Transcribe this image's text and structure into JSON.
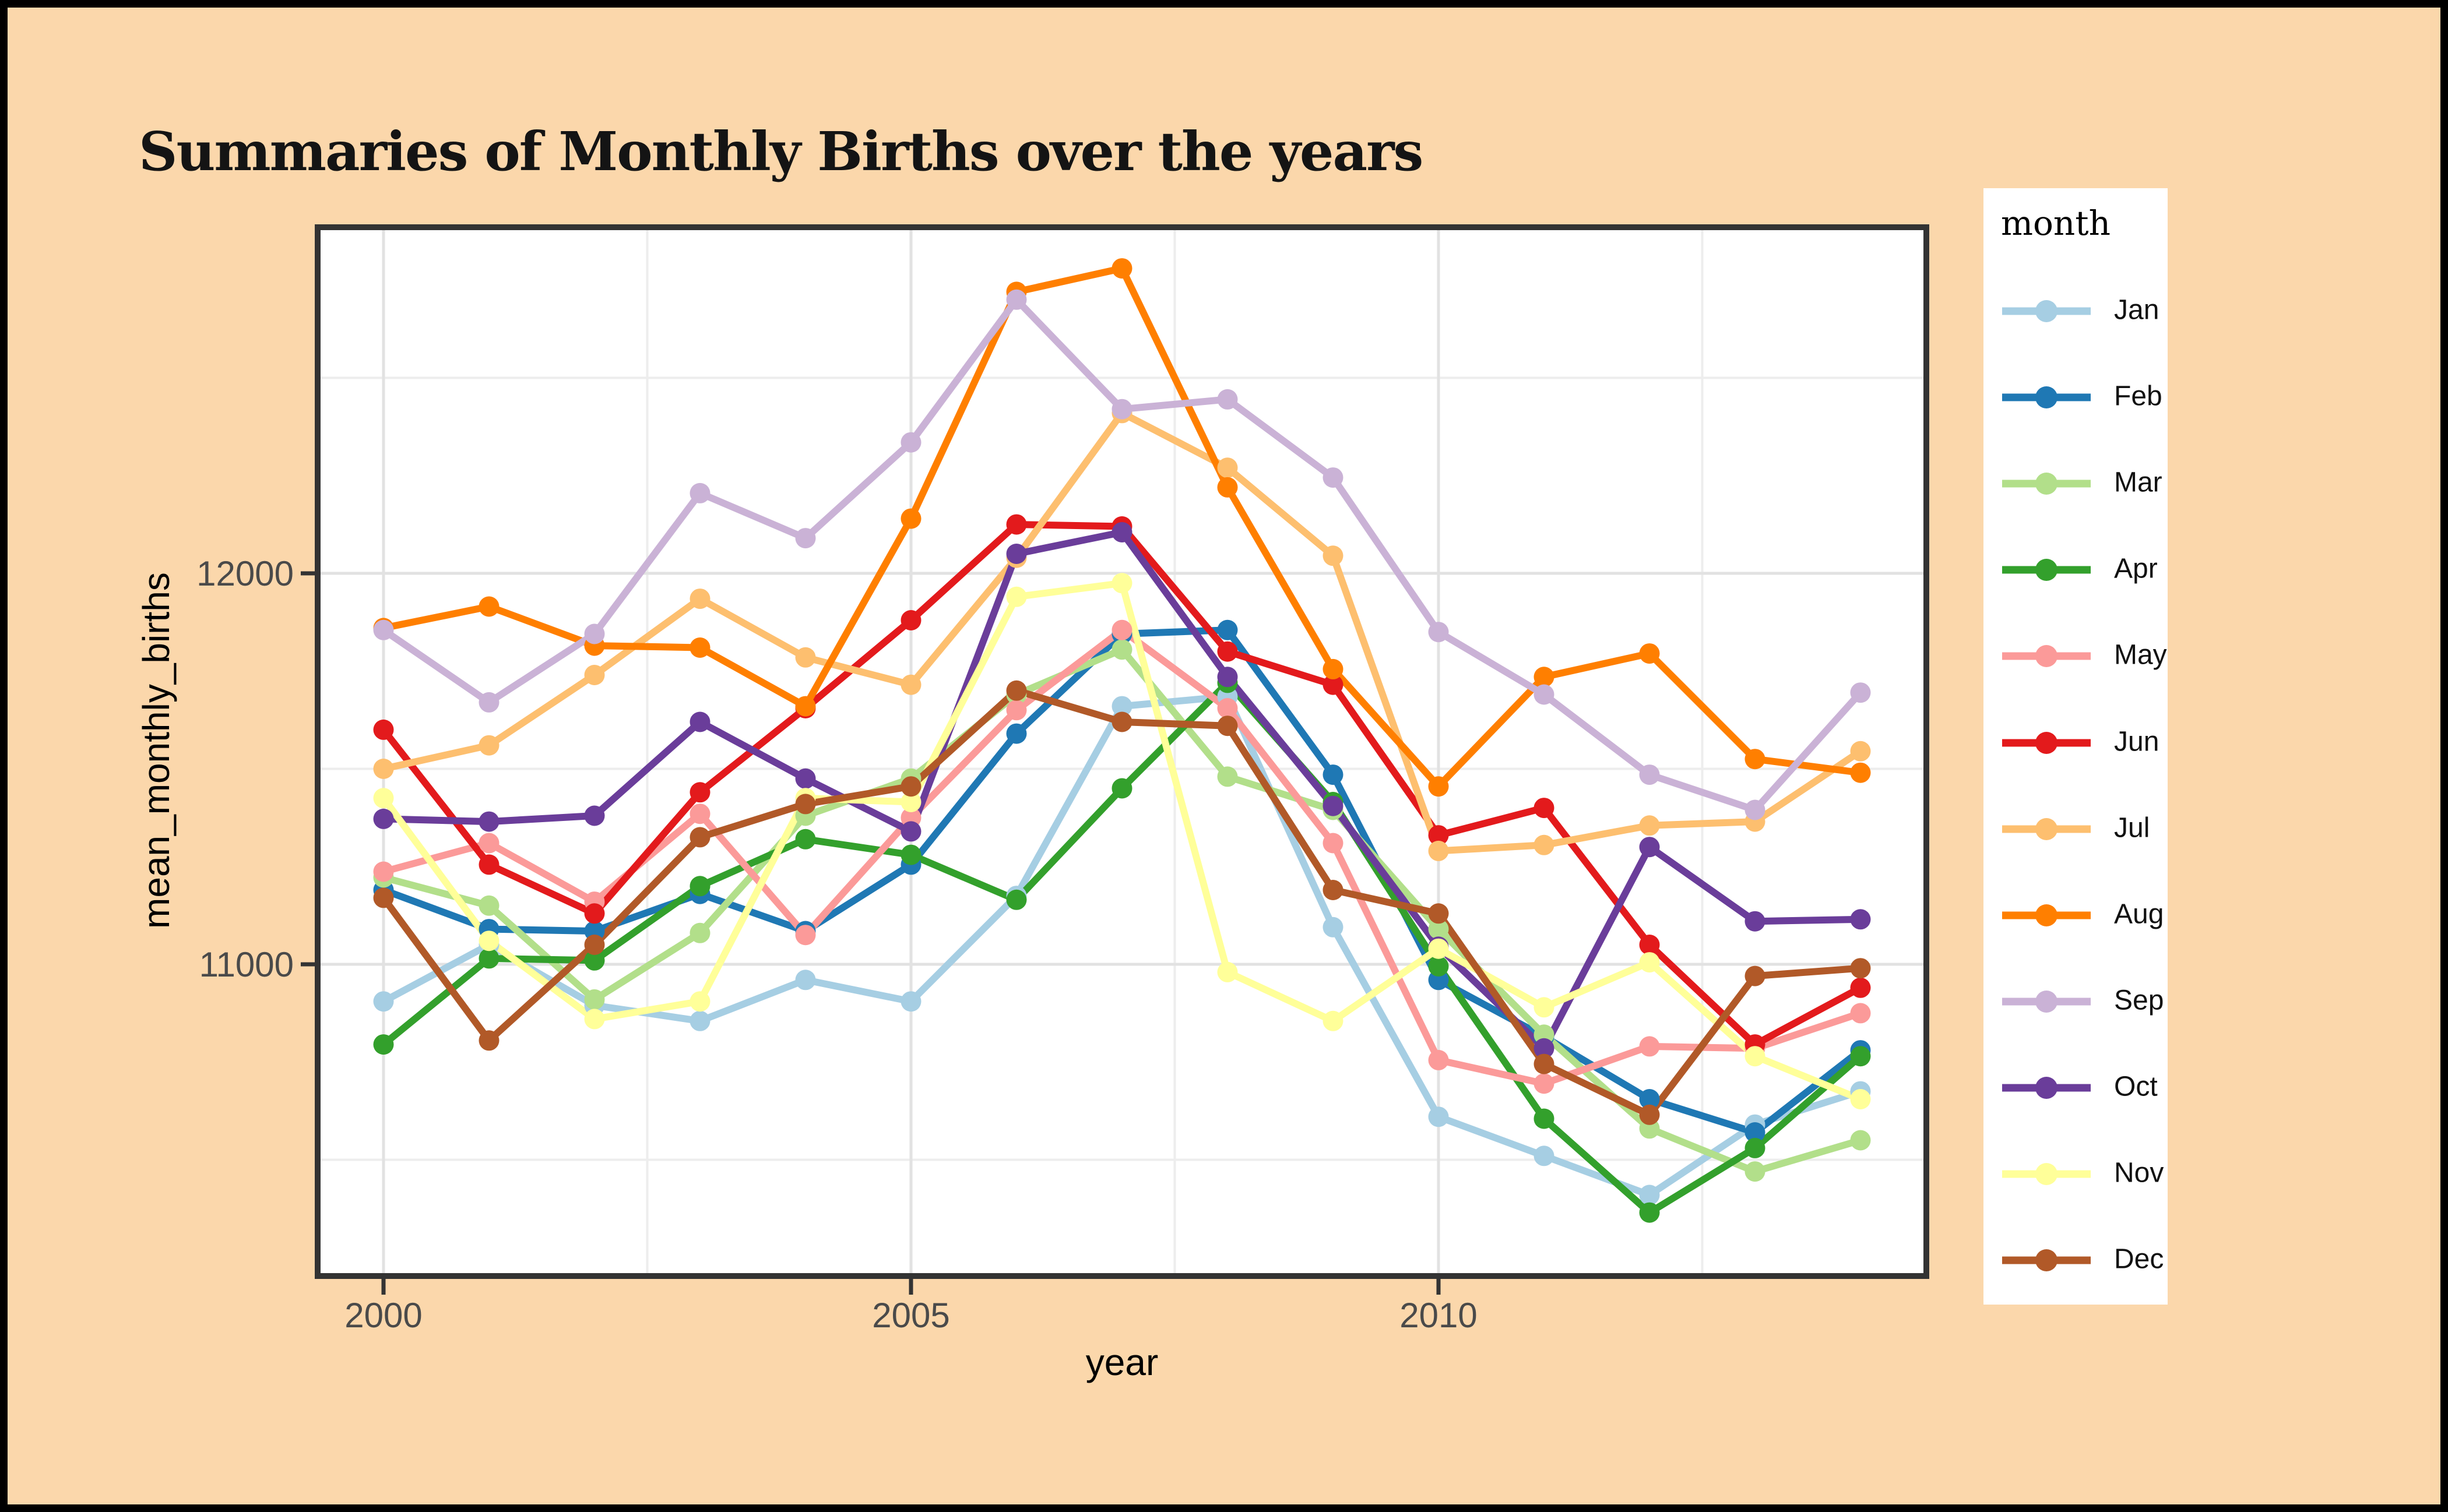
{
  "title": "Summaries of Monthly Births over the years",
  "chart_data": {
    "type": "line",
    "title": "Summaries of Monthly Births over the years",
    "xlabel": "year",
    "ylabel": "mean_monthly_births",
    "legend_title": "month",
    "legend_position": "right",
    "grid": true,
    "x": [
      2000,
      2001,
      2002,
      2003,
      2004,
      2005,
      2006,
      2007,
      2008,
      2009,
      2010,
      2011,
      2012,
      2013,
      2014
    ],
    "x_ticks": {
      "values": [
        2000,
        2005,
        2010
      ],
      "labels": [
        "2000",
        "2005",
        "2010"
      ]
    },
    "y_ticks": {
      "values": [
        11000,
        12000
      ],
      "labels": [
        "11000",
        "12000"
      ]
    },
    "x_minor": [
      2002.5,
      2007.5,
      2012.5
    ],
    "y_minor": [
      10500,
      11500,
      12500
    ],
    "xlim": [
      1999.37,
      2014.63
    ],
    "ylim": [
      10200,
      12890
    ],
    "series": [
      {
        "name": "Jan",
        "color": "#A6CEE3",
        "values": [
          10905,
          11050,
          10895,
          10855,
          10960,
          10905,
          11175,
          11660,
          11685,
          11095,
          10610,
          10510,
          10410,
          10590,
          10675
        ]
      },
      {
        "name": "Feb",
        "color": "#1F78B4",
        "values": [
          11190,
          11090,
          11085,
          11180,
          11085,
          11255,
          11590,
          11845,
          11855,
          11485,
          10960,
          10815,
          10655,
          10570,
          10780
        ]
      },
      {
        "name": "Mar",
        "color": "#B2DF8A",
        "values": [
          11222,
          11150,
          10910,
          11080,
          11380,
          11475,
          11690,
          11805,
          11480,
          11395,
          11090,
          10820,
          10580,
          10470,
          10550
        ]
      },
      {
        "name": "Apr",
        "color": "#33A02C",
        "values": [
          10795,
          11015,
          11010,
          11200,
          11320,
          11280,
          11165,
          11450,
          11720,
          11415,
          10995,
          10605,
          10365,
          10530,
          10765
        ]
      },
      {
        "name": "May",
        "color": "#FB9A99",
        "values": [
          11237,
          11310,
          11160,
          11385,
          11075,
          11375,
          11650,
          11855,
          11655,
          11310,
          10755,
          10695,
          10790,
          10785,
          10875
        ]
      },
      {
        "name": "Jun",
        "color": "#E31A1C",
        "values": [
          11600,
          11255,
          11130,
          11440,
          11655,
          11880,
          12125,
          12120,
          11800,
          11715,
          11330,
          11400,
          11050,
          10795,
          10940
        ]
      },
      {
        "name": "Jul",
        "color": "#FDBF6F",
        "values": [
          11500,
          11560,
          11740,
          11935,
          11785,
          11715,
          12040,
          12410,
          12270,
          12045,
          11290,
          11305,
          11355,
          11365,
          11545
        ]
      },
      {
        "name": "Aug",
        "color": "#FF7F00",
        "values": [
          11860,
          11915,
          11815,
          11810,
          11660,
          12140,
          12720,
          12780,
          12220,
          11755,
          11455,
          11735,
          11795,
          11525,
          11490
        ]
      },
      {
        "name": "Sep",
        "color": "#CAB2D6",
        "values": [
          11855,
          11670,
          11845,
          12205,
          12090,
          12335,
          12700,
          12420,
          12445,
          12245,
          11850,
          11690,
          11485,
          11395,
          11695
        ]
      },
      {
        "name": "Oct",
        "color": "#6A3D9A",
        "values": [
          11372,
          11365,
          11380,
          11620,
          11475,
          11340,
          12050,
          12105,
          11735,
          11405,
          11045,
          10785,
          11300,
          11110,
          11115
        ]
      },
      {
        "name": "Nov",
        "color": "#FFFF99",
        "values": [
          11425,
          11060,
          10860,
          10905,
          11425,
          11415,
          11940,
          11975,
          10980,
          10855,
          11040,
          10890,
          11005,
          10765,
          10655
        ]
      },
      {
        "name": "Dec",
        "color": "#B15928",
        "values": [
          11170,
          10805,
          11050,
          11325,
          11410,
          11455,
          11700,
          11620,
          11610,
          11190,
          11130,
          10745,
          10615,
          10970,
          10990
        ]
      }
    ]
  },
  "style_colors": {
    "page_background": "#FBD7AB",
    "panel_background": "#FFFFFF",
    "panel_border": "#333333",
    "grid_major": "#E2E2E2",
    "grid_minor": "#EDEDED",
    "tick_label": "#4A4A4A",
    "outer_frame": "#000000"
  }
}
